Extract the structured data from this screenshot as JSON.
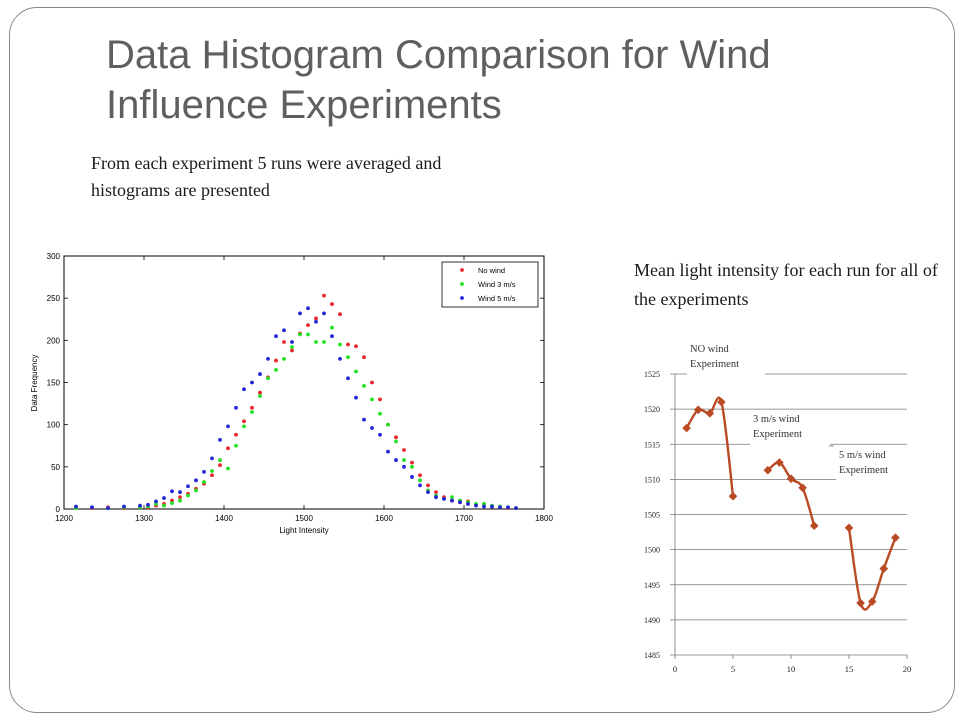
{
  "slide": {
    "title": "Data Histogram Comparison for Wind Influence Experiments",
    "intro_text": "From each experiment 5 runs were averaged and histograms are presented",
    "right_text": "Mean light intensity for each run for all of the experiments"
  },
  "chart_data": [
    {
      "type": "scatter",
      "title": "",
      "xlabel": "Light Intensity",
      "ylabel": "Data Frequency",
      "xlim": [
        1200,
        1800
      ],
      "ylim": [
        0,
        300
      ],
      "xticks": [
        1200,
        1300,
        1400,
        1500,
        1600,
        1700,
        1800
      ],
      "yticks": [
        0,
        50,
        100,
        150,
        200,
        250,
        300
      ],
      "grid": false,
      "legend_position": "top-right",
      "series": [
        {
          "name": "No wind",
          "color": "#e8252a",
          "points": [
            [
              1215,
              2
            ],
            [
              1235,
              1
            ],
            [
              1255,
              2
            ],
            [
              1275,
              1
            ],
            [
              1295,
              3
            ],
            [
              1305,
              2
            ],
            [
              1315,
              4
            ],
            [
              1325,
              6
            ],
            [
              1335,
              10
            ],
            [
              1345,
              14
            ],
            [
              1355,
              18
            ],
            [
              1365,
              24
            ],
            [
              1375,
              30
            ],
            [
              1385,
              40
            ],
            [
              1395,
              52
            ],
            [
              1405,
              72
            ],
            [
              1415,
              88
            ],
            [
              1425,
              104
            ],
            [
              1435,
              120
            ],
            [
              1445,
              138
            ],
            [
              1455,
              156
            ],
            [
              1465,
              176
            ],
            [
              1475,
              198
            ],
            [
              1485,
              188
            ],
            [
              1495,
              208
            ],
            [
              1505,
              218
            ],
            [
              1515,
              226
            ],
            [
              1525,
              253
            ],
            [
              1535,
              243
            ],
            [
              1545,
              231
            ],
            [
              1555,
              195
            ],
            [
              1565,
              193
            ],
            [
              1575,
              180
            ],
            [
              1585,
              150
            ],
            [
              1595,
              130
            ],
            [
              1605,
              100
            ],
            [
              1615,
              85
            ],
            [
              1625,
              70
            ],
            [
              1635,
              55
            ],
            [
              1645,
              40
            ],
            [
              1655,
              28
            ],
            [
              1665,
              20
            ],
            [
              1675,
              14
            ],
            [
              1685,
              10
            ],
            [
              1695,
              8
            ],
            [
              1705,
              9
            ],
            [
              1715,
              5
            ],
            [
              1725,
              6
            ],
            [
              1735,
              3
            ],
            [
              1745,
              2
            ],
            [
              1755,
              1
            ],
            [
              1765,
              1
            ]
          ]
        },
        {
          "name": "Wind 3 m/s",
          "color": "#22e022",
          "points": [
            [
              1215,
              1
            ],
            [
              1235,
              2
            ],
            [
              1255,
              1
            ],
            [
              1275,
              2
            ],
            [
              1295,
              2
            ],
            [
              1305,
              3
            ],
            [
              1315,
              6
            ],
            [
              1325,
              4
            ],
            [
              1335,
              7
            ],
            [
              1345,
              10
            ],
            [
              1355,
              16
            ],
            [
              1365,
              22
            ],
            [
              1375,
              32
            ],
            [
              1385,
              45
            ],
            [
              1395,
              58
            ],
            [
              1405,
              48
            ],
            [
              1415,
              75
            ],
            [
              1425,
              98
            ],
            [
              1435,
              115
            ],
            [
              1445,
              134
            ],
            [
              1455,
              155
            ],
            [
              1465,
              165
            ],
            [
              1475,
              178
            ],
            [
              1485,
              192
            ],
            [
              1495,
              207
            ],
            [
              1505,
              207
            ],
            [
              1515,
              198
            ],
            [
              1525,
              198
            ],
            [
              1535,
              215
            ],
            [
              1545,
              195
            ],
            [
              1555,
              180
            ],
            [
              1565,
              163
            ],
            [
              1575,
              146
            ],
            [
              1585,
              130
            ],
            [
              1595,
              113
            ],
            [
              1605,
              100
            ],
            [
              1615,
              80
            ],
            [
              1625,
              58
            ],
            [
              1635,
              50
            ],
            [
              1645,
              34
            ],
            [
              1655,
              22
            ],
            [
              1665,
              16
            ],
            [
              1675,
              12
            ],
            [
              1685,
              14
            ],
            [
              1695,
              10
            ],
            [
              1705,
              8
            ],
            [
              1715,
              6
            ],
            [
              1725,
              6
            ],
            [
              1735,
              4
            ],
            [
              1745,
              3
            ],
            [
              1755,
              2
            ],
            [
              1765,
              1
            ]
          ]
        },
        {
          "name": "Wind 5 m/s",
          "color": "#2424d8",
          "points": [
            [
              1215,
              3
            ],
            [
              1235,
              2
            ],
            [
              1255,
              1
            ],
            [
              1275,
              3
            ],
            [
              1295,
              4
            ],
            [
              1305,
              5
            ],
            [
              1315,
              9
            ],
            [
              1325,
              13
            ],
            [
              1335,
              21
            ],
            [
              1345,
              20
            ],
            [
              1355,
              27
            ],
            [
              1365,
              34
            ],
            [
              1375,
              44
            ],
            [
              1385,
              60
            ],
            [
              1395,
              82
            ],
            [
              1405,
              98
            ],
            [
              1415,
              120
            ],
            [
              1425,
              142
            ],
            [
              1435,
              150
            ],
            [
              1445,
              160
            ],
            [
              1455,
              178
            ],
            [
              1465,
              205
            ],
            [
              1475,
              212
            ],
            [
              1485,
              198
            ],
            [
              1495,
              232
            ],
            [
              1505,
              238
            ],
            [
              1515,
              222
            ],
            [
              1525,
              232
            ],
            [
              1535,
              205
            ],
            [
              1545,
              178
            ],
            [
              1555,
              155
            ],
            [
              1565,
              132
            ],
            [
              1575,
              106
            ],
            [
              1585,
              96
            ],
            [
              1595,
              88
            ],
            [
              1605,
              68
            ],
            [
              1615,
              58
            ],
            [
              1625,
              50
            ],
            [
              1635,
              38
            ],
            [
              1645,
              28
            ],
            [
              1655,
              20
            ],
            [
              1665,
              14
            ],
            [
              1675,
              12
            ],
            [
              1685,
              10
            ],
            [
              1695,
              8
            ],
            [
              1705,
              6
            ],
            [
              1715,
              4
            ],
            [
              1725,
              3
            ],
            [
              1735,
              3
            ],
            [
              1745,
              2
            ],
            [
              1755,
              2
            ],
            [
              1765,
              1
            ]
          ]
        }
      ]
    },
    {
      "type": "line",
      "title": "",
      "xlabel": "",
      "ylabel": "",
      "xlim": [
        0,
        20
      ],
      "ylim": [
        1485,
        1525
      ],
      "xticks": [
        0,
        5,
        10,
        15,
        20
      ],
      "yticks": [
        1485,
        1490,
        1495,
        1500,
        1505,
        1510,
        1515,
        1520,
        1525
      ],
      "grid": true,
      "color": "#b94a24",
      "series": [
        {
          "name": "",
          "x": [
            1,
            2,
            3,
            4,
            5
          ],
          "y": [
            1517.3,
            1519.9,
            1519.4,
            1521.0,
            1507.6
          ]
        },
        {
          "name": "",
          "x": [
            8,
            9,
            10,
            11,
            12
          ],
          "y": [
            1511.3,
            1512.4,
            1510.1,
            1508.8,
            1503.4
          ]
        },
        {
          "name": "",
          "x": [
            15,
            16,
            17,
            18,
            19
          ],
          "y": [
            1503.1,
            1492.4,
            1492.6,
            1497.3,
            1501.7
          ]
        }
      ],
      "annotations": [
        {
          "lines": [
            "NO wind",
            "Experiment"
          ]
        },
        {
          "lines": [
            "3 m/s wind",
            "Experiment"
          ]
        },
        {
          "lines": [
            "5 m/s wind",
            "Experiment"
          ]
        }
      ]
    }
  ]
}
